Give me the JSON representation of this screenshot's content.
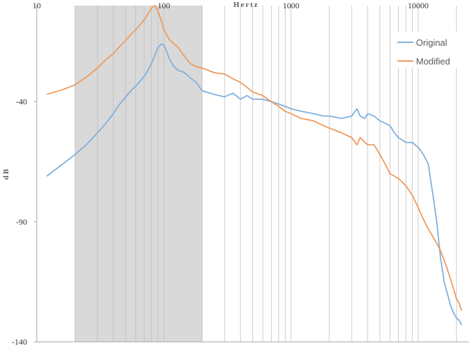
{
  "chart_data": {
    "type": "line",
    "title": "",
    "xlabel": "Hertz",
    "ylabel": "dB",
    "x_scale": "log",
    "xlim": [
      10,
      25000
    ],
    "ylim": [
      -140,
      0
    ],
    "x_ticks": [
      {
        "value": 10,
        "label": "10"
      },
      {
        "value": 100,
        "label": "100"
      },
      {
        "value": 1000,
        "label": "1000"
      },
      {
        "value": 10000,
        "label": "10000"
      }
    ],
    "y_ticks": [
      {
        "value": -40,
        "label": "-40"
      },
      {
        "value": -90,
        "label": "-90"
      },
      {
        "value": -140,
        "label": "-140"
      }
    ],
    "shaded_band": {
      "x_start": 20,
      "x_end": 200
    },
    "grid": {
      "vertical": true,
      "horizontal": false
    },
    "legend": {
      "position": "top-right"
    },
    "series": [
      {
        "name": "Original",
        "color": "#7fb0dd",
        "x": [
          12,
          16,
          20,
          25,
          30,
          35,
          40,
          45,
          50,
          55,
          60,
          65,
          70,
          75,
          80,
          85,
          90,
          95,
          100,
          105,
          110,
          120,
          130,
          140,
          150,
          160,
          180,
          200,
          250,
          300,
          350,
          400,
          450,
          500,
          600,
          700,
          800,
          900,
          1000,
          1200,
          1500,
          1800,
          2000,
          2500,
          3000,
          3300,
          3500,
          3800,
          4000,
          4500,
          5000,
          5500,
          6000,
          6500,
          7000,
          7500,
          8000,
          9000,
          10000,
          11000,
          12000,
          13000,
          14000,
          15000,
          16000,
          17000,
          18000,
          19000,
          20000,
          21000,
          22000
        ],
        "y": [
          -71,
          -66,
          -62,
          -57.5,
          -53,
          -49,
          -45,
          -41,
          -38,
          -35.5,
          -33.5,
          -31.5,
          -29.5,
          -27,
          -24,
          -20.5,
          -17.5,
          -16,
          -16.5,
          -19,
          -22,
          -25.5,
          -27,
          -27.5,
          -28.5,
          -30,
          -32,
          -35.5,
          -37,
          -38,
          -36.5,
          -39,
          -37.5,
          -39,
          -39,
          -40,
          -41,
          -42,
          -43,
          -44,
          -45,
          -46,
          -46,
          -47,
          -46,
          -43,
          -46,
          -47,
          -45,
          -46,
          -48,
          -49,
          -50,
          -53,
          -55,
          -56,
          -57,
          -57,
          -59,
          -62,
          -66,
          -78,
          -90,
          -105,
          -115,
          -120,
          -125,
          -128,
          -130,
          -131,
          -133
        ]
      },
      {
        "name": "Modified",
        "color": "#ef9a5e",
        "x": [
          12,
          16,
          20,
          25,
          30,
          35,
          40,
          45,
          50,
          55,
          60,
          65,
          70,
          75,
          80,
          85,
          90,
          95,
          100,
          110,
          120,
          130,
          140,
          150,
          160,
          180,
          200,
          250,
          300,
          350,
          400,
          450,
          500,
          600,
          700,
          800,
          900,
          1000,
          1200,
          1500,
          1800,
          2000,
          2500,
          3000,
          3300,
          3500,
          4000,
          4500,
          5000,
          5500,
          6000,
          6500,
          7000,
          8000,
          9000,
          10000,
          11000,
          12000,
          13000,
          14000,
          15000,
          16000,
          17000,
          18000,
          19000,
          20000,
          21000,
          22000
        ],
        "y": [
          -37,
          -35,
          -33,
          -29.5,
          -26,
          -22.5,
          -20,
          -17,
          -14.5,
          -12,
          -10,
          -8,
          -6,
          -3.5,
          -1,
          0,
          -2.5,
          -6,
          -10,
          -14,
          -16,
          -17.5,
          -20,
          -22,
          -24,
          -25.5,
          -26,
          -28,
          -28.5,
          -30.5,
          -32,
          -34,
          -36,
          -37.5,
          -40,
          -42,
          -44,
          -45,
          -47,
          -48,
          -50,
          -51,
          -53,
          -55,
          -58,
          -55,
          -58,
          -58,
          -62,
          -66,
          -70,
          -71,
          -72,
          -75,
          -79,
          -84,
          -89,
          -93,
          -96,
          -99,
          -102,
          -106,
          -110,
          -114,
          -118,
          -122,
          -124,
          -127
        ]
      }
    ]
  }
}
